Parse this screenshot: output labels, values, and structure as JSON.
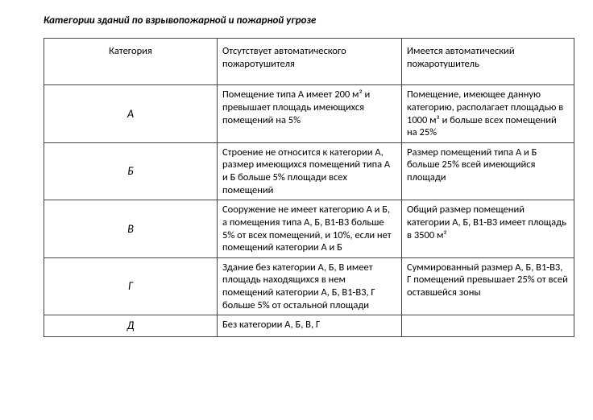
{
  "title": "Категории зданий по взрывопожарной и пожарной угрозе",
  "headers": {
    "h1": "Категория",
    "h2": "Отсутствует автоматического пожаротушителя",
    "h3": "Имеется автоматический пожаротушитель"
  },
  "rows": {
    "r0": {
      "cat": "А",
      "col2": "Помещение типа А имеет 200 м² и превышает площадь имеющихся помещений на 5%",
      "col3": "Помещение, имеющее данную категорию, располагает площадью в 1000 м² и больше всех помещений на 25%"
    },
    "r1": {
      "cat": "Б",
      "col2": "Строение не относится к категории А, размер имеющихся помещений типа А и Б больше 5% площади всех помещений",
      "col3": "Размер помещений типа А и Б больше 25% всей имеющийся площади"
    },
    "r2": {
      "cat": "В",
      "col2": "Сооружение не имеет категорию А и Б, а помещения типа А, Б, В1-В3 больше 5% от всех помещений, и 10%, если нет помещений категории А и Б",
      "col3": "Общий размер помещений категории А, Б, В1-В3 имеет площадь в 3500 м²"
    },
    "r3": {
      "cat": "Г",
      "col2": "Здание без категории А, Б, В имеет площадь находящихся в нем помещений категории А, Б, В1-В3, Г больше 5% от остальной площади",
      "col3": "Суммированный размер А, Б, В1-В3, Г помещений превышает 25% от всей оставшейся зоны"
    },
    "r4": {
      "cat": "Д",
      "col2": "Без категории А, Б, В, Г",
      "col3": ""
    }
  }
}
